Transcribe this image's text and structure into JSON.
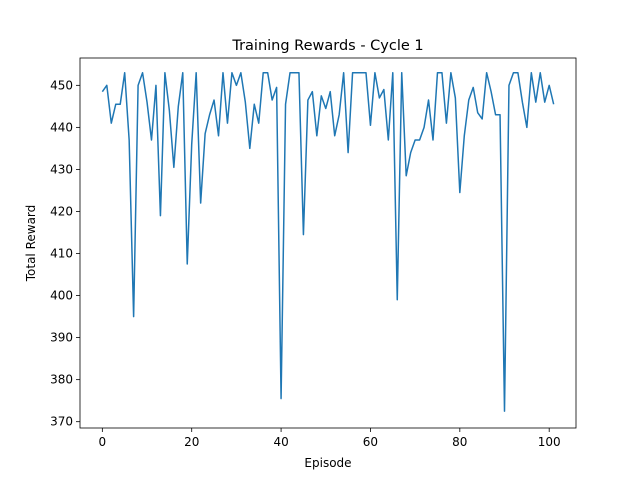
{
  "chart_data": {
    "type": "line",
    "title": "Training Rewards - Cycle 1",
    "xlabel": "Episode",
    "ylabel": "Total Reward",
    "xlim": [
      -5,
      106
    ],
    "ylim": [
      368.5,
      456.5
    ],
    "xticks": [
      0,
      20,
      40,
      60,
      80,
      100
    ],
    "yticks": [
      370,
      380,
      390,
      400,
      410,
      420,
      430,
      440,
      450
    ],
    "grid": false,
    "series": [
      {
        "color": "#1f77b4",
        "x": [
          0,
          1,
          2,
          3,
          4,
          5,
          6,
          7,
          8,
          9,
          10,
          11,
          12,
          13,
          14,
          15,
          16,
          17,
          18,
          19,
          20,
          21,
          22,
          23,
          24,
          25,
          26,
          27,
          28,
          29,
          30,
          31,
          32,
          33,
          34,
          35,
          36,
          37,
          38,
          39,
          40,
          41,
          42,
          43,
          44,
          45,
          46,
          47,
          48,
          49,
          50,
          51,
          52,
          53,
          54,
          55,
          56,
          57,
          58,
          59,
          60,
          61,
          62,
          63,
          64,
          65,
          66,
          67,
          68,
          69,
          70,
          71,
          72,
          73,
          74,
          75,
          76,
          77,
          78,
          79,
          80,
          81,
          82,
          83,
          84,
          85,
          86,
          87,
          88,
          89,
          90,
          91,
          92,
          93,
          94,
          95,
          96,
          97,
          98,
          99,
          100,
          101
        ],
        "y": [
          448.5,
          450,
          441,
          445.5,
          445.5,
          453,
          437,
          395,
          450,
          453,
          446,
          437,
          450,
          419,
          453,
          444,
          430.5,
          445,
          453,
          407.5,
          436,
          453,
          422,
          438.5,
          443,
          446.5,
          438,
          453,
          441,
          453,
          450,
          453,
          446,
          435,
          445.5,
          441,
          453,
          453,
          446.5,
          449.5,
          375.5,
          445.5,
          453,
          453,
          453,
          414.5,
          446.5,
          448.5,
          438,
          447.5,
          444.5,
          448.5,
          438,
          443,
          453,
          434,
          453,
          453,
          453,
          453,
          440.5,
          453,
          447,
          449,
          437,
          453,
          399,
          453,
          428.5,
          434,
          437,
          437,
          440,
          446.5,
          437,
          453,
          453,
          441,
          453,
          447,
          424.5,
          438,
          446.5,
          449.5,
          443.5,
          442,
          453,
          448.5,
          443,
          443,
          372.5,
          450,
          453,
          453,
          446,
          440,
          453,
          446,
          453,
          446,
          450,
          445.5
        ]
      }
    ]
  }
}
